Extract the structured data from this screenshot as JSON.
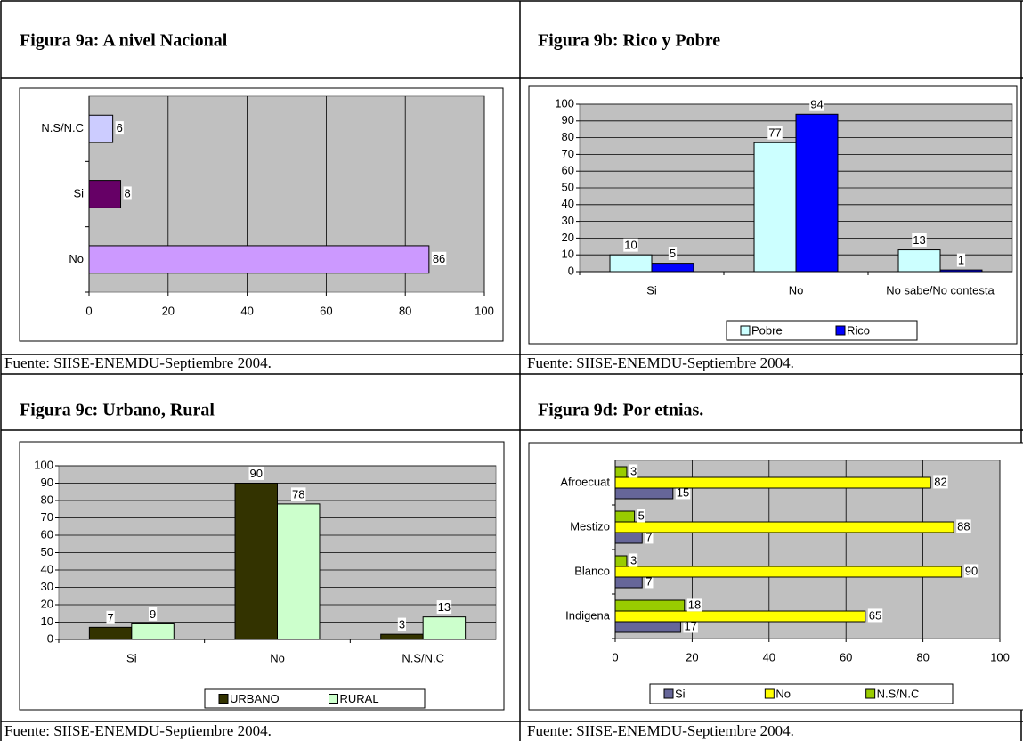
{
  "chart_data": [
    {
      "type": "bar",
      "horizontal": true,
      "title": "Figura 9a: A nivel Nacional",
      "source": "Fuente: SIISE-ENEMDU-Septiembre 2004.",
      "categories": [
        "No",
        "Si",
        "N.S/N.C"
      ],
      "values": [
        86,
        8,
        6
      ],
      "colors": [
        "#cc99ff",
        "#660066",
        "#ccccff"
      ],
      "xlim": [
        0,
        100
      ],
      "xticks": [
        0,
        20,
        40,
        60,
        80,
        100
      ],
      "grid": true
    },
    {
      "type": "bar",
      "horizontal": false,
      "title": "Figura 9b: Rico y Pobre",
      "source": "Fuente: SIISE-ENEMDU-Septiembre 2004.",
      "categories": [
        "Si",
        "No",
        "No sabe/No contesta"
      ],
      "series": [
        {
          "name": "Pobre",
          "color": "#ccffff",
          "values": [
            10,
            77,
            13
          ]
        },
        {
          "name": "Rico",
          "color": "#0000ff",
          "values": [
            5,
            94,
            1
          ]
        }
      ],
      "ylim": [
        0,
        100
      ],
      "yticks": [
        0,
        10,
        20,
        30,
        40,
        50,
        60,
        70,
        80,
        90,
        100
      ],
      "grid": true,
      "legend": "bottom"
    },
    {
      "type": "bar",
      "horizontal": false,
      "title": "Figura 9c: Urbano, Rural",
      "source": "Fuente: SIISE-ENEMDU-Septiembre 2004.",
      "categories": [
        "Si",
        "No",
        "N.S/N.C"
      ],
      "series": [
        {
          "name": "URBANO",
          "color": "#333300",
          "values": [
            7,
            90,
            3
          ]
        },
        {
          "name": "RURAL",
          "color": "#ccffcc",
          "values": [
            9,
            78,
            13
          ]
        }
      ],
      "ylim": [
        0,
        100
      ],
      "yticks": [
        0,
        10,
        20,
        30,
        40,
        50,
        60,
        70,
        80,
        90,
        100
      ],
      "grid": true,
      "legend": "bottom"
    },
    {
      "type": "bar",
      "horizontal": true,
      "title": "Figura 9d: Por etnias.",
      "source": "Fuente: SIISE-ENEMDU-Septiembre 2004.",
      "categories": [
        "Indigena",
        "Blanco",
        "Mestizo",
        "Afroecuat"
      ],
      "series": [
        {
          "name": "Si",
          "color": "#666699",
          "values": [
            17,
            7,
            7,
            15
          ]
        },
        {
          "name": "No",
          "color": "#ffff00",
          "values": [
            65,
            90,
            88,
            82
          ]
        },
        {
          "name": "N.S/N.C",
          "color": "#99cc00",
          "values": [
            18,
            3,
            5,
            3
          ]
        }
      ],
      "xlim": [
        0,
        100
      ],
      "xticks": [
        0,
        20,
        40,
        60,
        80,
        100
      ],
      "grid": true,
      "legend": "bottom"
    }
  ]
}
